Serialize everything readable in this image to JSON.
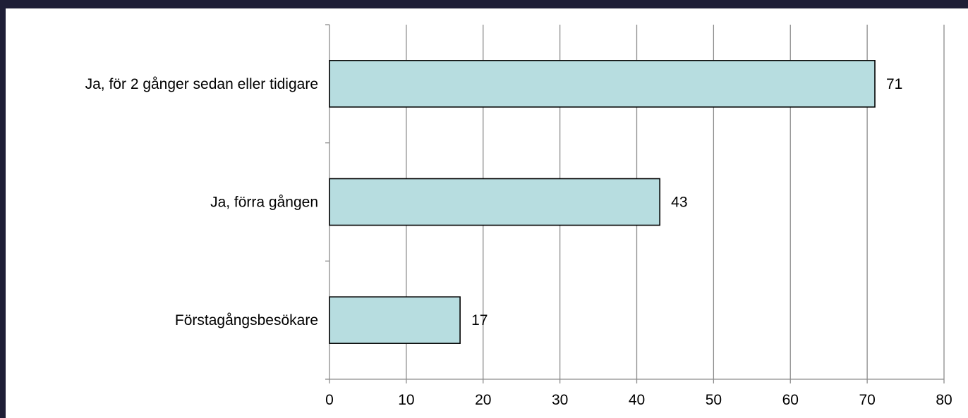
{
  "colors": {
    "frame": "#1e1e36",
    "background": "#ffffff",
    "bar_fill": "#b7dde0",
    "bar_stroke": "#000000",
    "grid": "#8c8c8c",
    "axis": "#8c8c8c",
    "text": "#000000"
  },
  "chart_data": {
    "type": "bar",
    "orientation": "horizontal",
    "categories": [
      "Ja, för 2 gånger sedan eller tidigare",
      "Ja, förra gången",
      "Förstagångsbesökare"
    ],
    "values": [
      71,
      43,
      17
    ],
    "data_labels": [
      "71",
      "43",
      "17"
    ],
    "xlim": [
      0,
      80
    ],
    "x_ticks": [
      0,
      10,
      20,
      30,
      40,
      50,
      60,
      70,
      80
    ],
    "x_tick_labels": [
      "0",
      "10",
      "20",
      "30",
      "40",
      "50",
      "60",
      "70",
      "80"
    ],
    "title": "",
    "xlabel": "",
    "ylabel": "",
    "grid": "vertical",
    "legend": "none"
  }
}
